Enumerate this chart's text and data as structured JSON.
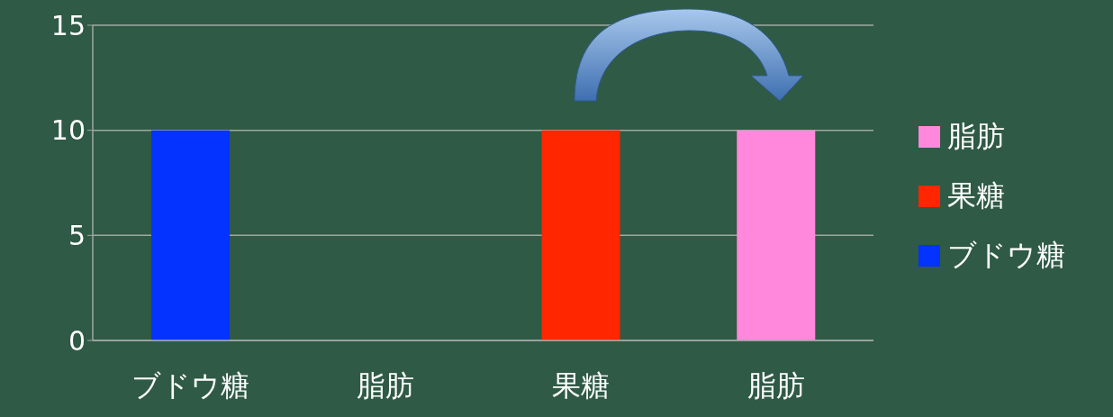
{
  "chart_data": {
    "type": "bar",
    "stacked": true,
    "categories": [
      "ブドウ糖",
      "脂肪",
      "果糖",
      "脂肪"
    ],
    "series": [
      {
        "name": "ブドウ糖",
        "color": "#0433ff",
        "values": [
          10,
          null,
          null,
          null
        ]
      },
      {
        "name": "果糖",
        "color": "#ff2600",
        "values": [
          null,
          null,
          10,
          null
        ]
      },
      {
        "name": "脂肪",
        "color": "#ff88dd",
        "values": [
          null,
          null,
          null,
          10
        ]
      }
    ],
    "ylim": [
      0,
      15
    ],
    "yticks": [
      0,
      5,
      10,
      15
    ],
    "grid": "y",
    "legend": "right"
  }
}
